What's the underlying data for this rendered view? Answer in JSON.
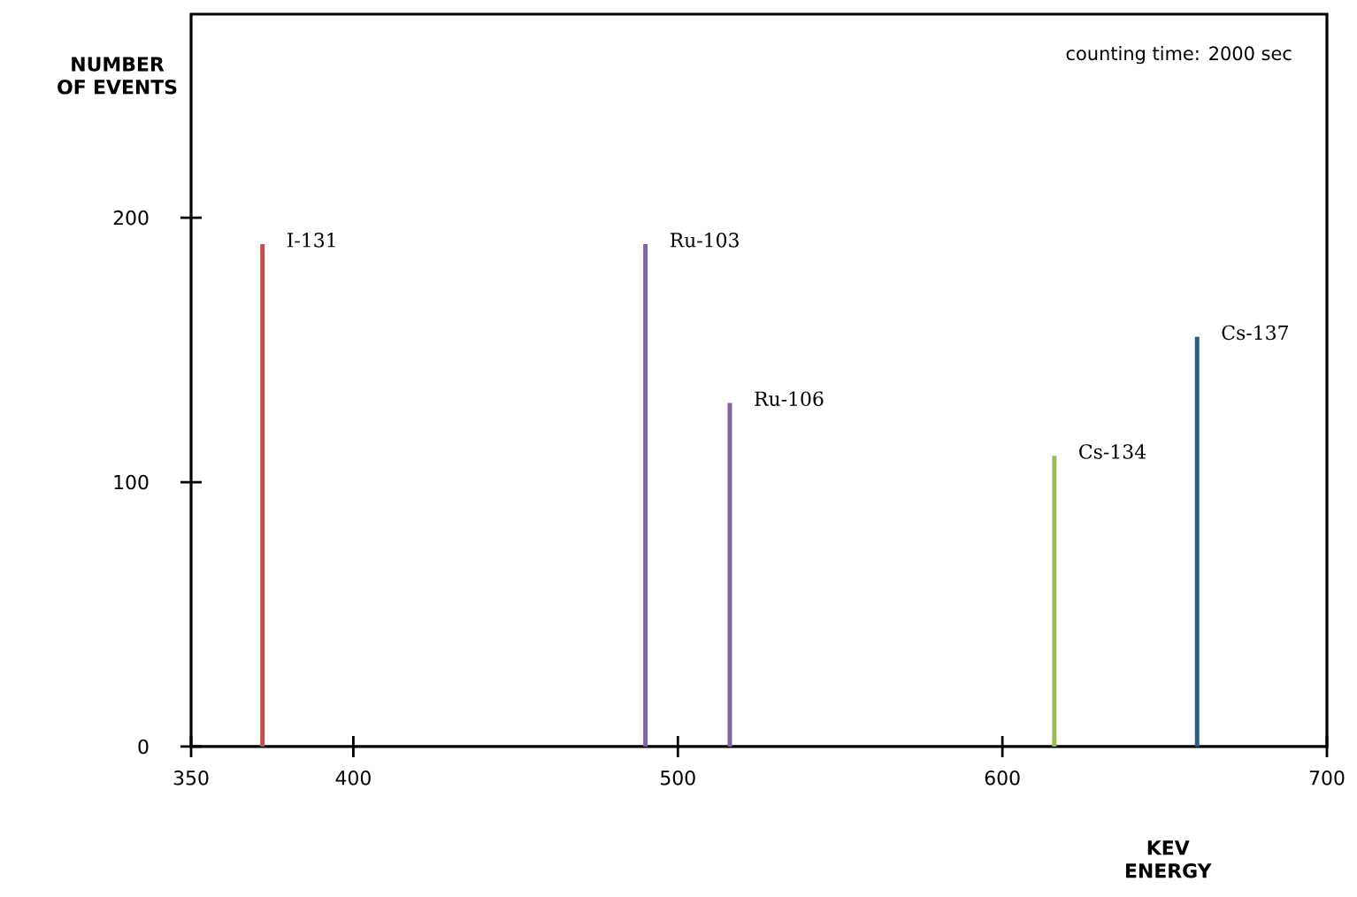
{
  "chart_data": {
    "type": "bar",
    "xlabel": "KEV ENERGY",
    "ylabel": "NUMBER OF EVENTS",
    "x": [
      372,
      490,
      516,
      616,
      660
    ],
    "values": [
      190,
      190,
      130,
      110,
      155
    ],
    "colors": [
      "#c0504d",
      "#8064a2",
      "#8064a2",
      "#9bbb59",
      "#2e5a87"
    ],
    "xlim": [
      350,
      700
    ],
    "xticks": [
      350,
      400,
      500,
      600,
      700
    ],
    "ylim": [
      0,
      277
    ],
    "yticks": [
      0,
      100,
      200
    ],
    "grid": false,
    "annotations": [
      {
        "text": "I-131",
        "x": 372,
        "y": 190
      },
      {
        "text": "Ru-103",
        "x": 490,
        "y": 190
      },
      {
        "text": "Ru-106",
        "x": 516,
        "y": 130
      },
      {
        "text": "Cs-134",
        "x": 616,
        "y": 110
      },
      {
        "text": "Cs-137",
        "x": 660,
        "y": 155
      },
      "counting time: 2000 sec"
    ]
  }
}
